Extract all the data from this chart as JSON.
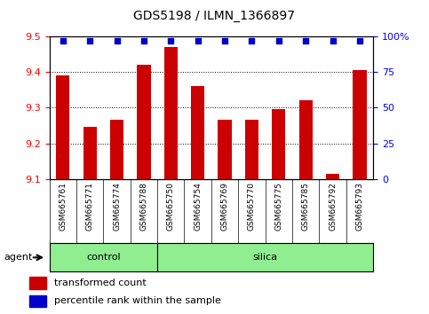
{
  "title": "GDS5198 / ILMN_1366897",
  "samples": [
    "GSM665761",
    "GSM665771",
    "GSM665774",
    "GSM665788",
    "GSM665750",
    "GSM665754",
    "GSM665769",
    "GSM665770",
    "GSM665775",
    "GSM665785",
    "GSM665792",
    "GSM665793"
  ],
  "transformed_count": [
    9.39,
    9.245,
    9.265,
    9.42,
    9.47,
    9.36,
    9.265,
    9.265,
    9.295,
    9.32,
    9.115,
    9.405
  ],
  "percentile_rank": [
    97,
    97,
    97,
    97,
    97,
    97,
    97,
    97,
    97,
    97,
    97,
    97
  ],
  "group_colors": [
    "#90EE90",
    "#90EE90"
  ],
  "ylim_left": [
    9.1,
    9.5
  ],
  "ylim_right": [
    0,
    100
  ],
  "bar_color": "#CC0000",
  "dot_color": "#0000CC",
  "bar_width": 0.5,
  "yticks_left": [
    9.1,
    9.2,
    9.3,
    9.4,
    9.5
  ],
  "yticks_right": [
    0,
    25,
    50,
    75,
    100
  ],
  "grid_values": [
    9.2,
    9.3,
    9.4
  ],
  "legend_items": [
    {
      "label": "transformed count",
      "color": "#CC0000"
    },
    {
      "label": "percentile rank within the sample",
      "color": "#0000CC"
    }
  ],
  "agent_label": "agent",
  "tick_bg_color": "#C8C8C8",
  "n_control": 4,
  "n_silica": 8,
  "control_label": "control",
  "silica_label": "silica"
}
